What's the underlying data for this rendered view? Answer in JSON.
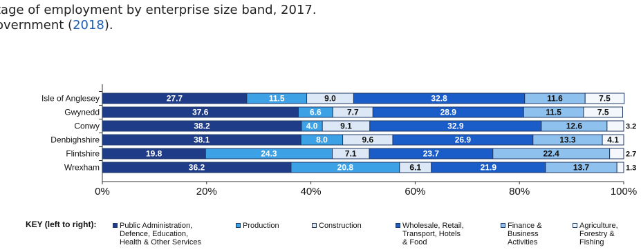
{
  "caption": {
    "line1": "tage of employment by enterprise size band, 2017.",
    "line2_prefix": "overnment (",
    "line2_link": "2018",
    "line2_suffix": ")."
  },
  "colors": {
    "public_admin": "#1f3c88",
    "production": "#3da1e6",
    "construction": "#dde8f6",
    "wholesale": "#1a5cc8",
    "finance": "#8fc1ee",
    "agriculture": "#f4f7fc",
    "border": "#1f3864"
  },
  "key": {
    "title": "KEY (left to right):",
    "items": [
      {
        "label": "Public Administration,\nDefence, Education,\nHealth & Other Services",
        "color": "#1f3c88"
      },
      {
        "label": "Production",
        "color": "#3da1e6"
      },
      {
        "label": "Construction",
        "color": "#dde8f6"
      },
      {
        "label": "Wholesale, Retail,\nTransport, Hotels\n& Food",
        "color": "#1a5cc8"
      },
      {
        "label": "Finance &\nBusiness\nActivities",
        "color": "#8fc1ee"
      },
      {
        "label": "Agriculture,\nForestry &\nFishing",
        "color": "#f4f7fc"
      }
    ]
  },
  "chart_data": {
    "type": "bar",
    "orientation": "horizontal",
    "stacked": true,
    "categories": [
      "Isle of Anglesey",
      "Gwynedd",
      "Conwy",
      "Denbighshire",
      "Flintshire",
      "Wrexham"
    ],
    "series": [
      {
        "name": "Public Administration, Defence, Education, Health & Other Services",
        "values": [
          27.7,
          37.6,
          38.2,
          38.1,
          19.8,
          36.2
        ]
      },
      {
        "name": "Production",
        "values": [
          11.5,
          6.6,
          4.0,
          8.0,
          24.3,
          20.8
        ]
      },
      {
        "name": "Construction",
        "values": [
          9.0,
          7.7,
          9.1,
          9.6,
          7.1,
          6.1
        ]
      },
      {
        "name": "Wholesale, Retail, Transport, Hotels & Food",
        "values": [
          32.8,
          28.9,
          32.9,
          26.9,
          23.7,
          21.9
        ]
      },
      {
        "name": "Finance & Business Activities",
        "values": [
          11.6,
          11.5,
          12.6,
          13.3,
          22.4,
          13.7
        ]
      },
      {
        "name": "Agriculture, Forestry & Fishing",
        "values": [
          7.5,
          7.5,
          3.2,
          4.1,
          2.7,
          1.3
        ]
      }
    ],
    "labels": [
      [
        "27.7",
        "11.5",
        "9.0",
        "32.8",
        "11.6",
        "7.5"
      ],
      [
        "37.6",
        "6.6",
        "7.7",
        "28.9",
        "11.5",
        "7.5"
      ],
      [
        "38.2",
        "4.0",
        "9.1",
        "32.9",
        "12.6",
        "3.2"
      ],
      [
        "38.1",
        "8.0",
        "9.6",
        "26.9",
        "13.3",
        "4.1"
      ],
      [
        "19.8",
        "24.3",
        "7.1",
        "23.7",
        "22.4",
        "2.7"
      ],
      [
        "36.2",
        "20.8",
        "6.1",
        "21.9",
        "13.7",
        "1.3"
      ]
    ],
    "outside_label_rows": [
      false,
      false,
      true,
      false,
      true,
      true
    ],
    "xlim": [
      0,
      100
    ],
    "xticks": [
      "0%",
      "20%",
      "40%",
      "60%",
      "80%",
      "100%"
    ],
    "grid": false
  }
}
